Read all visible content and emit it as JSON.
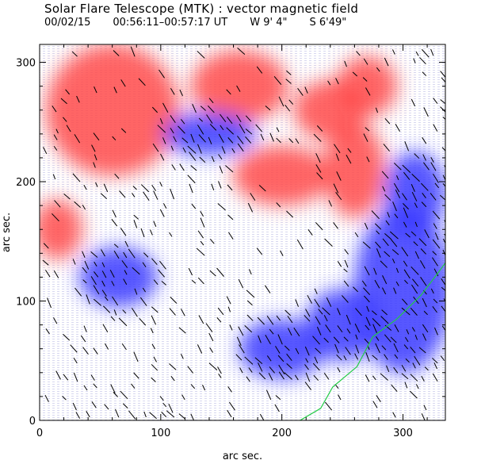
{
  "header": {
    "title": "Solar Flare Telescope (MTK) : vector magnetic field",
    "date": "00/02/15",
    "time_range": "00:56:11–00:57:17 UT",
    "lon": "W 9' 4\"",
    "lat": "S 6'49\""
  },
  "chart_data": {
    "type": "heatmap",
    "title": "Solar Flare Telescope (MTK) : vector magnetic field",
    "xlabel": "arc sec.",
    "ylabel": "arc sec.",
    "xlim": [
      0,
      335
    ],
    "ylim": [
      0,
      315
    ],
    "x_ticks": [
      "0",
      "100",
      "200",
      "300"
    ],
    "y_ticks": [
      "0",
      "100",
      "200",
      "300"
    ],
    "colors": {
      "positive_polarity": "#ff4a4a",
      "negative_polarity": "#3a3aff",
      "background": "#ffffff",
      "vectors": "#000000",
      "contour": "#22cc44"
    },
    "positive_regions": [
      {
        "x": 60,
        "y": 260,
        "rx": 55,
        "ry": 55
      },
      {
        "x": 165,
        "y": 280,
        "rx": 40,
        "ry": 30
      },
      {
        "x": 200,
        "y": 205,
        "rx": 40,
        "ry": 25
      },
      {
        "x": 260,
        "y": 210,
        "rx": 25,
        "ry": 40
      },
      {
        "x": 15,
        "y": 160,
        "rx": 20,
        "ry": 25
      },
      {
        "x": 240,
        "y": 260,
        "rx": 30,
        "ry": 25
      },
      {
        "x": 270,
        "y": 280,
        "rx": 25,
        "ry": 25
      }
    ],
    "negative_regions": [
      {
        "x": 140,
        "y": 240,
        "rx": 38,
        "ry": 18
      },
      {
        "x": 65,
        "y": 120,
        "rx": 32,
        "ry": 25
      },
      {
        "x": 310,
        "y": 190,
        "rx": 25,
        "ry": 35
      },
      {
        "x": 300,
        "y": 110,
        "rx": 40,
        "ry": 70
      },
      {
        "x": 200,
        "y": 60,
        "rx": 35,
        "ry": 25
      },
      {
        "x": 250,
        "y": 80,
        "rx": 30,
        "ry": 30
      }
    ],
    "contour_line": [
      [
        215,
        0
      ],
      [
        232,
        10
      ],
      [
        242,
        28
      ],
      [
        262,
        45
      ],
      [
        275,
        70
      ],
      [
        295,
        85
      ],
      [
        315,
        105
      ],
      [
        330,
        125
      ],
      [
        335,
        132
      ]
    ],
    "vector_field": "black line segments showing transverse field direction"
  }
}
